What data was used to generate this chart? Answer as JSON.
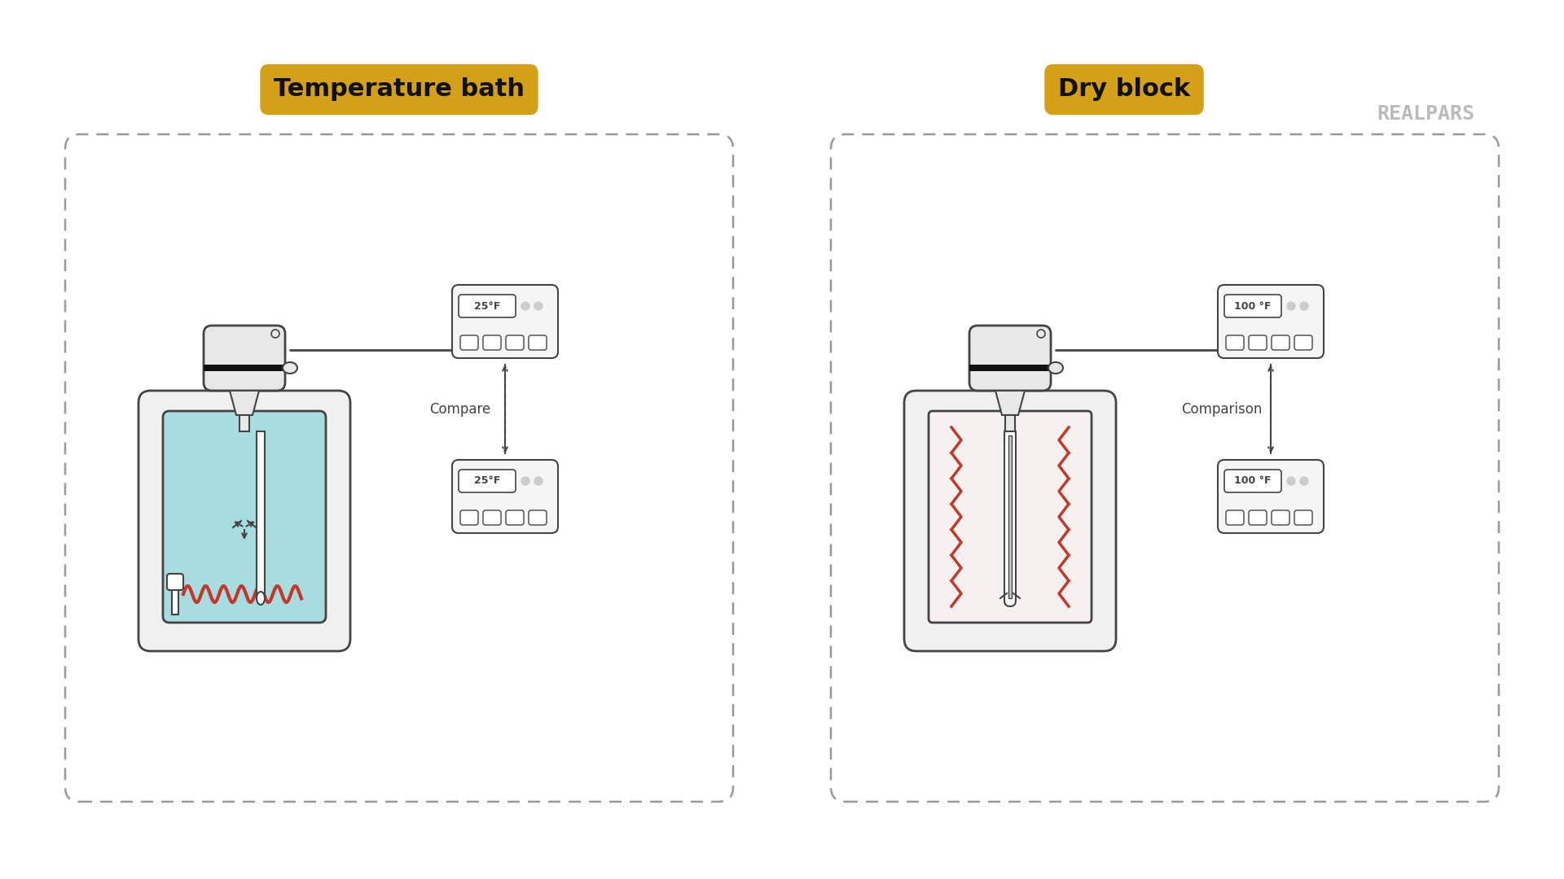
{
  "bg_color": "#ffffff",
  "border_color": "#555555",
  "light_gray": "#e8e8e8",
  "mid_gray": "#cccccc",
  "dark_gray": "#444444",
  "water_color": "#a8dce0",
  "heater_color": "#c0392b",
  "label_bg": "#d4a017",
  "label_text": "#111111",
  "display_bg": "#f5f5f5",
  "panel_bg": "#f0f0f0",
  "left_label": "Temperature bath",
  "right_label": "Dry block",
  "left_temp": "25°F",
  "right_temp": "100 °F",
  "left_compare": "25°F",
  "right_compare": "100 °F",
  "compare_text_left": "Compare",
  "compare_text_right": "Comparison",
  "realpars_text": "REALPARS",
  "realpars_color": "#bbbbbb"
}
